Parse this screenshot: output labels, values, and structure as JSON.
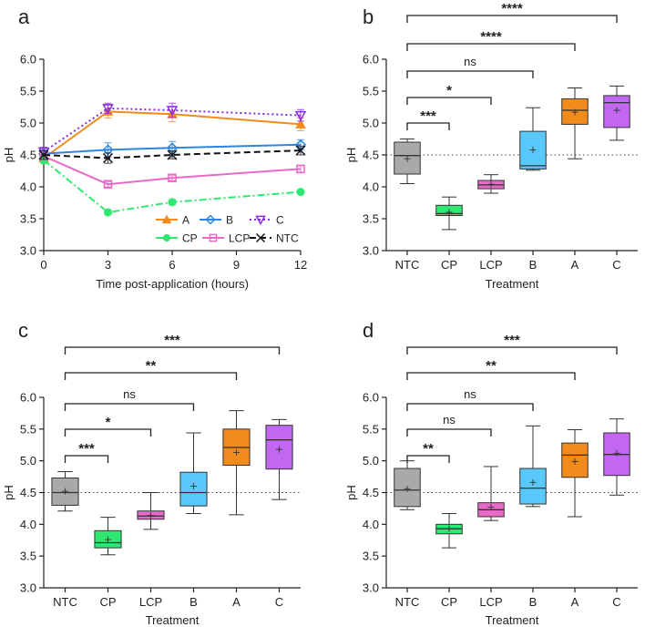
{
  "chart_data": [
    {
      "panel": "a",
      "type": "line",
      "xlabel": "Time post-application (hours)",
      "ylabel": "pH",
      "x": [
        0,
        3,
        6,
        12
      ],
      "xticks": [
        0,
        3,
        6,
        9,
        12
      ],
      "xlim": [
        0,
        12
      ],
      "ylim": [
        3.0,
        6.0
      ],
      "yticks": [
        "3.0",
        "3.5",
        "4.0",
        "4.5",
        "5.0",
        "5.5",
        "6.0"
      ],
      "legend_position": "lower-right",
      "series": [
        {
          "name": "A",
          "color": "#f28a1c",
          "dash": "solid",
          "marker": "triangle",
          "values": [
            4.45,
            5.18,
            5.14,
            4.98
          ],
          "errors": [
            0.08,
            0.1,
            0.12,
            0.1
          ]
        },
        {
          "name": "B",
          "color": "#2e86de",
          "dash": "solid",
          "marker": "diamond",
          "values": [
            4.52,
            4.58,
            4.61,
            4.66
          ],
          "errors": [
            0.08,
            0.11,
            0.1,
            0.08
          ]
        },
        {
          "name": "C",
          "color": "#8a2be2",
          "dash": "dotted",
          "marker": "triangle-down",
          "values": [
            4.55,
            5.23,
            5.2,
            5.12
          ],
          "errors": [
            0.07,
            0.08,
            0.11,
            0.09
          ]
        },
        {
          "name": "CP",
          "color": "#2ee872",
          "dash": "dashdot",
          "marker": "circle",
          "values": [
            4.42,
            3.6,
            3.76,
            3.92
          ],
          "errors": [
            0.06,
            0.04,
            0.04,
            0.03
          ]
        },
        {
          "name": "LCP",
          "color": "#e86ac8",
          "dash": "solid",
          "marker": "square",
          "values": [
            4.48,
            4.04,
            4.14,
            4.28
          ],
          "errors": [
            0.06,
            0.04,
            0.04,
            0.05
          ]
        },
        {
          "name": "NTC",
          "color": "#111111",
          "dash": "dashed",
          "marker": "x-cross",
          "values": [
            4.5,
            4.45,
            4.5,
            4.57
          ],
          "errors": [
            0.07,
            0.08,
            0.06,
            0.07
          ]
        }
      ]
    },
    {
      "panel": "b",
      "type": "box",
      "xlabel": "Treatment",
      "ylabel": "pH",
      "ylim": [
        3.0,
        6.0
      ],
      "yticks": [
        "3.0",
        "3.5",
        "4.0",
        "4.5",
        "5.0",
        "5.5",
        "6.0"
      ],
      "reference_line": 4.5,
      "categories": [
        "NTC",
        "CP",
        "LCP",
        "B",
        "A",
        "C"
      ],
      "colors": [
        "#a9a9a9",
        "#2ee872",
        "#e86ac8",
        "#5ac8fa",
        "#f28a1c",
        "#c167f0"
      ],
      "boxes": [
        {
          "min": 4.05,
          "q1": 4.2,
          "median": 4.49,
          "q3": 4.7,
          "max": 4.75,
          "mean": 4.44
        },
        {
          "min": 3.33,
          "q1": 3.55,
          "median": 3.58,
          "q3": 3.71,
          "max": 3.84,
          "mean": 3.6
        },
        {
          "min": 3.9,
          "q1": 3.97,
          "median": 4.03,
          "q3": 4.1,
          "max": 4.19,
          "mean": 4.04
        },
        {
          "min": 4.26,
          "q1": 4.28,
          "median": 4.33,
          "q3": 4.87,
          "max": 5.24,
          "mean": 4.58
        },
        {
          "min": 4.44,
          "q1": 4.98,
          "median": 5.2,
          "q3": 5.38,
          "max": 5.55,
          "mean": 5.17
        },
        {
          "min": 4.73,
          "q1": 4.93,
          "median": 5.32,
          "q3": 5.43,
          "max": 5.58,
          "mean": 5.2
        }
      ],
      "comparisons": [
        {
          "from": "NTC",
          "to": "CP",
          "label": "***"
        },
        {
          "from": "NTC",
          "to": "LCP",
          "label": "*"
        },
        {
          "from": "NTC",
          "to": "B",
          "label": "ns"
        },
        {
          "from": "NTC",
          "to": "A",
          "label": "****"
        },
        {
          "from": "NTC",
          "to": "C",
          "label": "****"
        }
      ]
    },
    {
      "panel": "c",
      "type": "box",
      "xlabel": "Treatment",
      "ylabel": "pH",
      "ylim": [
        3.0,
        6.0
      ],
      "yticks": [
        "3.0",
        "3.5",
        "4.0",
        "4.5",
        "5.0",
        "5.5",
        "6.0"
      ],
      "reference_line": 4.5,
      "categories": [
        "NTC",
        "CP",
        "LCP",
        "B",
        "A",
        "C"
      ],
      "colors": [
        "#a9a9a9",
        "#2ee872",
        "#e86ac8",
        "#5ac8fa",
        "#f28a1c",
        "#c167f0"
      ],
      "boxes": [
        {
          "min": 4.21,
          "q1": 4.3,
          "median": 4.5,
          "q3": 4.73,
          "max": 4.83,
          "mean": 4.52
        },
        {
          "min": 3.52,
          "q1": 3.63,
          "median": 3.71,
          "q3": 3.9,
          "max": 4.11,
          "mean": 3.76
        },
        {
          "min": 3.92,
          "q1": 4.08,
          "median": 4.13,
          "q3": 4.21,
          "max": 4.5,
          "mean": 4.14
        },
        {
          "min": 4.17,
          "q1": 4.29,
          "median": 4.5,
          "q3": 4.82,
          "max": 5.44,
          "mean": 4.6
        },
        {
          "min": 4.15,
          "q1": 4.93,
          "median": 5.21,
          "q3": 5.5,
          "max": 5.79,
          "mean": 5.13
        },
        {
          "min": 4.39,
          "q1": 4.87,
          "median": 5.33,
          "q3": 5.56,
          "max": 5.65,
          "mean": 5.18
        }
      ],
      "comparisons": [
        {
          "from": "NTC",
          "to": "CP",
          "label": "***"
        },
        {
          "from": "NTC",
          "to": "LCP",
          "label": "*"
        },
        {
          "from": "NTC",
          "to": "B",
          "label": "ns"
        },
        {
          "from": "NTC",
          "to": "A",
          "label": "**"
        },
        {
          "from": "NTC",
          "to": "C",
          "label": "***"
        }
      ]
    },
    {
      "panel": "d",
      "type": "box",
      "xlabel": "Treatment",
      "ylabel": "pH",
      "ylim": [
        3.0,
        6.0
      ],
      "yticks": [
        "3.0",
        "3.5",
        "4.0",
        "4.5",
        "5.0",
        "5.5",
        "6.0"
      ],
      "reference_line": 4.5,
      "categories": [
        "NTC",
        "CP",
        "LCP",
        "B",
        "A",
        "C"
      ],
      "colors": [
        "#a9a9a9",
        "#2ee872",
        "#e86ac8",
        "#5ac8fa",
        "#f28a1c",
        "#c167f0"
      ],
      "boxes": [
        {
          "min": 4.23,
          "q1": 4.28,
          "median": 4.54,
          "q3": 4.88,
          "max": 5.0,
          "mean": 4.56
        },
        {
          "min": 3.63,
          "q1": 3.85,
          "median": 3.93,
          "q3": 4.0,
          "max": 4.17,
          "mean": 3.93
        },
        {
          "min": 4.06,
          "q1": 4.12,
          "median": 4.23,
          "q3": 4.34,
          "max": 4.91,
          "mean": 4.27
        },
        {
          "min": 4.28,
          "q1": 4.32,
          "median": 4.57,
          "q3": 4.88,
          "max": 5.55,
          "mean": 4.66
        },
        {
          "min": 4.12,
          "q1": 4.74,
          "median": 5.09,
          "q3": 5.28,
          "max": 5.49,
          "mean": 4.99
        },
        {
          "min": 4.46,
          "q1": 4.77,
          "median": 5.1,
          "q3": 5.44,
          "max": 5.66,
          "mean": 5.12
        }
      ],
      "comparisons": [
        {
          "from": "NTC",
          "to": "CP",
          "label": "**"
        },
        {
          "from": "NTC",
          "to": "LCP",
          "label": "ns"
        },
        {
          "from": "NTC",
          "to": "B",
          "label": "ns"
        },
        {
          "from": "NTC",
          "to": "A",
          "label": "**"
        },
        {
          "from": "NTC",
          "to": "C",
          "label": "***"
        }
      ]
    }
  ]
}
